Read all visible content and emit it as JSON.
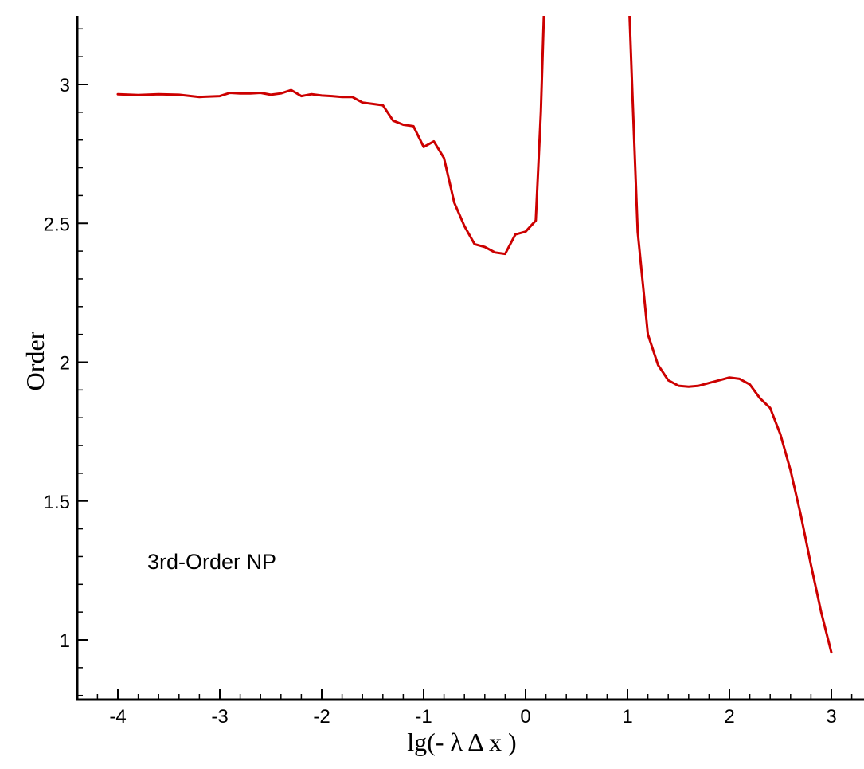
{
  "chart_data": {
    "type": "line",
    "title": "",
    "xlabel": "lg(- λ Δ x )",
    "ylabel": "Order",
    "xlim": [
      -4.4,
      3.2
    ],
    "ylim": [
      0.8,
      3.25
    ],
    "x_ticks": [
      -4,
      -3,
      -2,
      -1,
      0,
      1,
      2,
      3
    ],
    "x_tick_labels": [
      "-4",
      "-3",
      "-2",
      "-1",
      "0",
      "1",
      "2",
      "3"
    ],
    "y_ticks": [
      1,
      1.5,
      2,
      2.5,
      3
    ],
    "y_tick_labels": [
      "1",
      "1.5",
      "2",
      "2.5",
      "3"
    ],
    "grid": false,
    "legend": "none",
    "annotation": "3rd-Order NP",
    "line_color": "#cc0000",
    "series": [
      {
        "segments": [
          {
            "x": [
              -4.0,
              -3.8,
              -3.6,
              -3.4,
              -3.2,
              -3.0,
              -2.9,
              -2.8,
              -2.7,
              -2.6,
              -2.5,
              -2.4,
              -2.3,
              -2.2,
              -2.1,
              -2.0,
              -1.9,
              -1.8,
              -1.7,
              -1.6,
              -1.5,
              -1.4,
              -1.3,
              -1.2,
              -1.1,
              -1.0,
              -0.9,
              -0.8,
              -0.7,
              -0.6,
              -0.5,
              -0.4,
              -0.3,
              -0.2,
              -0.1,
              0.0,
              0.1,
              0.15,
              0.18
            ],
            "y": [
              2.965,
              2.962,
              2.965,
              2.963,
              2.955,
              2.958,
              2.97,
              2.968,
              2.968,
              2.97,
              2.963,
              2.968,
              2.98,
              2.958,
              2.965,
              2.96,
              2.958,
              2.955,
              2.955,
              2.935,
              2.93,
              2.925,
              2.87,
              2.855,
              2.85,
              2.775,
              2.795,
              2.735,
              2.575,
              2.49,
              2.425,
              2.415,
              2.395,
              2.39,
              2.46,
              2.47,
              2.51,
              2.9,
              3.25
            ]
          },
          {
            "x": [
              1.02,
              1.05,
              1.1,
              1.2,
              1.3,
              1.4,
              1.5,
              1.6,
              1.7,
              1.8,
              1.9,
              2.0,
              2.1,
              2.2,
              2.3,
              2.4,
              2.5,
              2.6,
              2.7,
              2.8,
              2.9,
              3.0
            ],
            "y": [
              3.25,
              2.95,
              2.47,
              2.1,
              1.99,
              1.935,
              1.915,
              1.912,
              1.915,
              1.925,
              1.935,
              1.945,
              1.94,
              1.92,
              1.87,
              1.835,
              1.74,
              1.61,
              1.45,
              1.27,
              1.1,
              0.955
            ]
          }
        ]
      }
    ]
  }
}
